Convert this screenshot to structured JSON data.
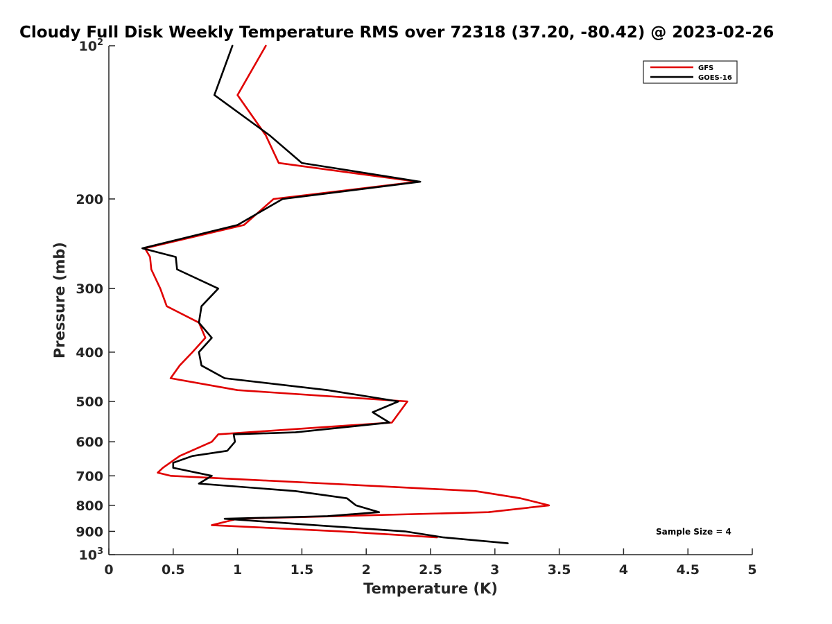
{
  "chart_data": {
    "type": "line",
    "title": "Cloudy Full Disk Weekly Temperature RMS over 72318 (37.20, -80.42) @ 2023-02-26",
    "xlabel": "Temperature (K)",
    "ylabel": "Pressure (mb)",
    "xlim": [
      0,
      5
    ],
    "ylim": [
      100,
      1000
    ],
    "y_scale": "log",
    "y_reversed": true,
    "grid": false,
    "legend_position": "top-right",
    "x_ticks": [
      "0",
      "0.5",
      "1",
      "1.5",
      "2",
      "2.5",
      "3",
      "3.5",
      "4",
      "4.5",
      "5"
    ],
    "y_ticks": [
      {
        "value": 100,
        "base": "10",
        "exp": "2"
      },
      {
        "value": 200,
        "label": "200"
      },
      {
        "value": 300,
        "label": "300"
      },
      {
        "value": 400,
        "label": "400"
      },
      {
        "value": 500,
        "label": "500"
      },
      {
        "value": 600,
        "label": "600"
      },
      {
        "value": 700,
        "label": "700"
      },
      {
        "value": 800,
        "label": "800"
      },
      {
        "value": 900,
        "label": "900"
      },
      {
        "value": 1000,
        "base": "10",
        "exp": "3"
      }
    ],
    "series": [
      {
        "name": "GFS",
        "color": "#e00000",
        "points": [
          [
            1.22,
            100
          ],
          [
            1.0,
            125
          ],
          [
            1.22,
            150
          ],
          [
            1.32,
            170
          ],
          [
            2.4,
            185
          ],
          [
            1.28,
            200
          ],
          [
            1.05,
            225
          ],
          [
            0.28,
            250
          ],
          [
            0.32,
            260
          ],
          [
            0.33,
            275
          ],
          [
            0.4,
            300
          ],
          [
            0.45,
            325
          ],
          [
            0.7,
            350
          ],
          [
            0.75,
            375
          ],
          [
            0.65,
            400
          ],
          [
            0.55,
            425
          ],
          [
            0.48,
            450
          ],
          [
            1.0,
            475
          ],
          [
            2.32,
            500
          ],
          [
            2.2,
            550
          ],
          [
            0.85,
            580
          ],
          [
            0.8,
            600
          ],
          [
            0.55,
            640
          ],
          [
            0.42,
            675
          ],
          [
            0.38,
            690
          ],
          [
            0.48,
            700
          ],
          [
            1.7,
            725
          ],
          [
            2.85,
            750
          ],
          [
            3.2,
            775
          ],
          [
            3.42,
            800
          ],
          [
            2.95,
            825
          ],
          [
            1.0,
            850
          ],
          [
            0.8,
            875
          ],
          [
            1.8,
            900
          ],
          [
            2.55,
            925
          ]
        ]
      },
      {
        "name": "GOES-16",
        "color": "#000000",
        "points": [
          [
            0.96,
            100
          ],
          [
            0.82,
            125
          ],
          [
            1.25,
            150
          ],
          [
            1.5,
            170
          ],
          [
            2.42,
            185
          ],
          [
            1.35,
            200
          ],
          [
            1.0,
            225
          ],
          [
            0.26,
            250
          ],
          [
            0.52,
            260
          ],
          [
            0.53,
            275
          ],
          [
            0.85,
            300
          ],
          [
            0.72,
            325
          ],
          [
            0.7,
            350
          ],
          [
            0.8,
            375
          ],
          [
            0.7,
            400
          ],
          [
            0.72,
            425
          ],
          [
            0.9,
            450
          ],
          [
            1.7,
            475
          ],
          [
            2.25,
            500
          ],
          [
            2.05,
            525
          ],
          [
            2.18,
            550
          ],
          [
            1.45,
            575
          ],
          [
            0.97,
            580
          ],
          [
            0.98,
            600
          ],
          [
            0.92,
            625
          ],
          [
            0.65,
            640
          ],
          [
            0.5,
            660
          ],
          [
            0.5,
            675
          ],
          [
            0.8,
            700
          ],
          [
            0.7,
            725
          ],
          [
            1.45,
            750
          ],
          [
            1.85,
            775
          ],
          [
            1.92,
            800
          ],
          [
            2.1,
            825
          ],
          [
            1.7,
            840
          ],
          [
            0.9,
            850
          ],
          [
            1.6,
            875
          ],
          [
            2.3,
            900
          ],
          [
            2.6,
            925
          ],
          [
            3.1,
            950
          ]
        ]
      }
    ],
    "annotation": "Sample Size = 4"
  }
}
